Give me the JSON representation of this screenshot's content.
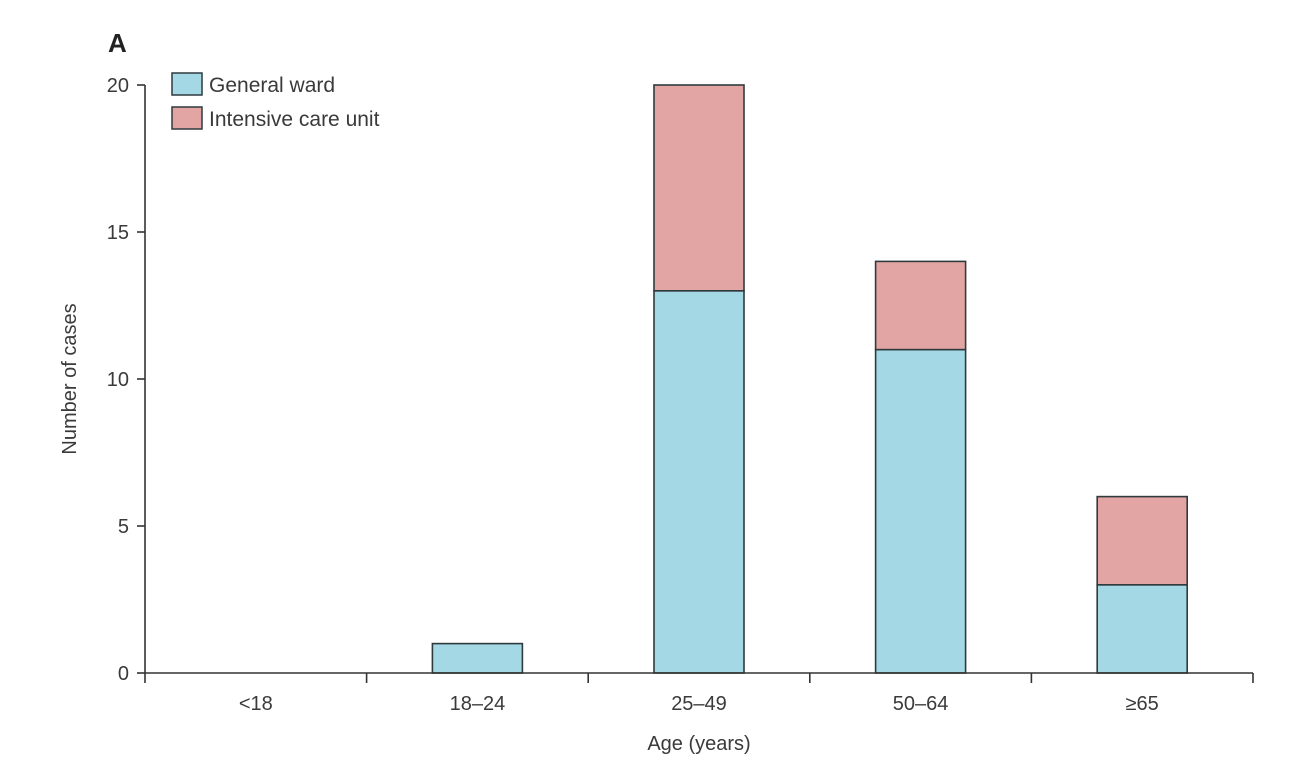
{
  "chart_data": {
    "type": "bar",
    "stacked": true,
    "panel_label": "A",
    "title": "",
    "xlabel": "Age (years)",
    "ylabel": "Number of cases",
    "categories": [
      "<18",
      "18–24",
      "25–49",
      "50–64",
      "≥65"
    ],
    "ylim": [
      0,
      20
    ],
    "yticks": [
      0,
      5,
      10,
      15,
      20
    ],
    "series": [
      {
        "name": "General ward",
        "values": [
          0,
          1,
          13,
          11,
          3
        ],
        "color": "#a4d8e4"
      },
      {
        "name": "Intensive care unit",
        "values": [
          0,
          0,
          7,
          3,
          3
        ],
        "color": "#e3a5a3"
      }
    ],
    "legend_position": "top-left",
    "grid": false
  }
}
